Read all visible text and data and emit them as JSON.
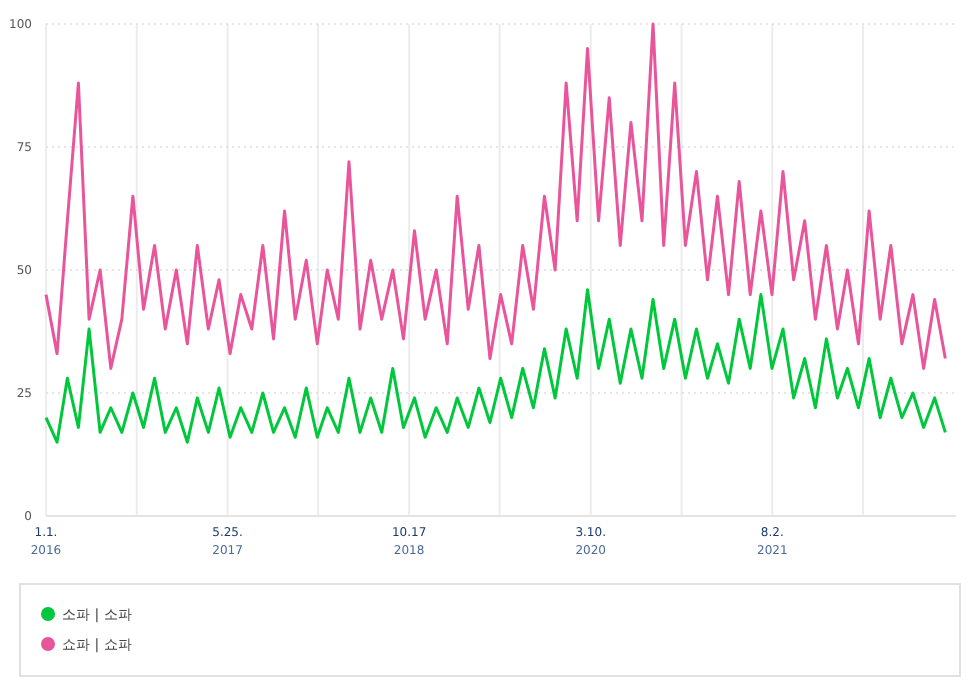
{
  "chart_data": {
    "type": "line",
    "legend": "bottom",
    "grid": true,
    "x": [
      "2016-01",
      "2016-02",
      "2016-03",
      "2016-04",
      "2016-05",
      "2016-06",
      "2016-07",
      "2016-08",
      "2016-09",
      "2016-10",
      "2016-11",
      "2016-12",
      "2017-01",
      "2017-02",
      "2017-03",
      "2017-04",
      "2017-05",
      "2017-06",
      "2017-07",
      "2017-08",
      "2017-09",
      "2017-10",
      "2017-11",
      "2017-12",
      "2018-01",
      "2018-02",
      "2018-03",
      "2018-04",
      "2018-05",
      "2018-06",
      "2018-07",
      "2018-08",
      "2018-09",
      "2018-10",
      "2018-11",
      "2018-12",
      "2019-01",
      "2019-02",
      "2019-03",
      "2019-04",
      "2019-05",
      "2019-06",
      "2019-07",
      "2019-08",
      "2019-09",
      "2019-10",
      "2019-11",
      "2019-12",
      "2020-01",
      "2020-02",
      "2020-03",
      "2020-04",
      "2020-05",
      "2020-06",
      "2020-07",
      "2020-08",
      "2020-09",
      "2020-10",
      "2020-11",
      "2020-12",
      "2021-01",
      "2021-02",
      "2021-03",
      "2021-04",
      "2021-05",
      "2021-06",
      "2021-07",
      "2021-08",
      "2021-09",
      "2021-10",
      "2021-11",
      "2021-12",
      "2022-01",
      "2022-02",
      "2022-03",
      "2022-04",
      "2022-05",
      "2022-06",
      "2022-07",
      "2022-08",
      "2022-09",
      "2022-10",
      "2022-11",
      "2022-12"
    ],
    "series": [
      {
        "name": "소파 | 소파",
        "color": "#00c73c",
        "values": [
          20,
          15,
          28,
          18,
          38,
          17,
          22,
          17,
          25,
          18,
          28,
          17,
          22,
          15,
          24,
          17,
          26,
          16,
          22,
          17,
          25,
          17,
          22,
          16,
          26,
          16,
          22,
          17,
          28,
          17,
          24,
          17,
          30,
          18,
          24,
          16,
          22,
          17,
          24,
          18,
          26,
          19,
          28,
          20,
          30,
          22,
          34,
          24,
          38,
          28,
          46,
          30,
          40,
          27,
          38,
          28,
          44,
          30,
          40,
          28,
          38,
          28,
          35,
          27,
          40,
          30,
          45,
          30,
          38,
          24,
          32,
          22,
          36,
          24,
          30,
          22,
          32,
          20,
          28,
          20,
          25,
          18,
          24,
          17
        ]
      },
      {
        "name": "쇼파 | 쇼파",
        "color": "#e9559a",
        "values": [
          45,
          33,
          60,
          88,
          40,
          50,
          30,
          40,
          65,
          42,
          55,
          38,
          50,
          35,
          55,
          38,
          48,
          33,
          45,
          38,
          55,
          36,
          62,
          40,
          52,
          35,
          50,
          40,
          72,
          38,
          52,
          40,
          50,
          36,
          58,
          40,
          50,
          35,
          65,
          42,
          55,
          32,
          45,
          35,
          55,
          42,
          65,
          50,
          88,
          60,
          95,
          60,
          85,
          55,
          80,
          60,
          100,
          55,
          88,
          55,
          70,
          48,
          65,
          45,
          68,
          45,
          62,
          45,
          70,
          48,
          60,
          40,
          55,
          38,
          50,
          35,
          62,
          40,
          55,
          35,
          45,
          30,
          44,
          32
        ]
      }
    ],
    "xlim": [
      "2016-01-01",
      "2022-12-31"
    ],
    "xticks": [
      {
        "value": "2016-01-01",
        "label": "1.1.\n2016"
      },
      {
        "value": "2016-09-12",
        "label": null
      },
      {
        "value": "2017-05-25",
        "label": "5.25.\n2017"
      },
      {
        "value": "2018-02-03",
        "label": null
      },
      {
        "value": "2018-10-17",
        "label": "10.17\n2018"
      },
      {
        "value": "2019-06-28",
        "label": null
      },
      {
        "value": "2020-03-10",
        "label": "3.10.\n2020"
      },
      {
        "value": "2020-11-20",
        "label": null
      },
      {
        "value": "2021-08-02",
        "label": "8.2.\n2021"
      },
      {
        "value": "2022-04-14",
        "label": null
      }
    ],
    "ylim": [
      0,
      100
    ],
    "yticks": [
      0,
      25,
      50,
      75,
      100
    ]
  }
}
